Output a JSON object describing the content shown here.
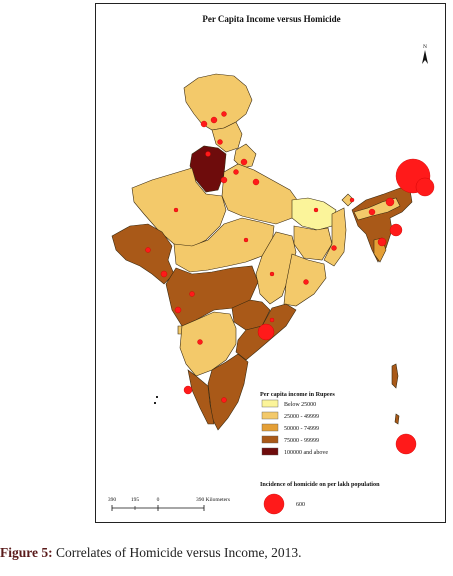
{
  "map": {
    "title": "Per Capita Income versus Homicide",
    "north_label": "N",
    "colors": {
      "below_25000": "#fbf49a",
      "25000_49999": "#f3c96a",
      "50000_74999": "#e49f36",
      "75000_99999": "#a95918",
      "100000_above": "#6e0c0c",
      "homicide": "#ff1a1a",
      "border": "#3a2a10"
    }
  },
  "legend": {
    "income_title": "Per capita income in Rupees",
    "classes": [
      {
        "label": "Below 25000",
        "color": "#fbf49a"
      },
      {
        "label": "25000 - 49999",
        "color": "#f3c96a"
      },
      {
        "label": "50000 - 74999",
        "color": "#e49f36"
      },
      {
        "label": "75000 - 99999",
        "color": "#a95918"
      },
      {
        "label": "100000 and above",
        "color": "#6e0c0c"
      }
    ],
    "homicide_title": "Incidence of homicide on per lakh population",
    "homicide_value": "600"
  },
  "scale": {
    "ticks": [
      "390",
      "195",
      "0",
      "390 Kilometers"
    ]
  },
  "caption": {
    "label": "Figure 5:",
    "text": " Correlates of Homicide versus Income, 2013."
  }
}
